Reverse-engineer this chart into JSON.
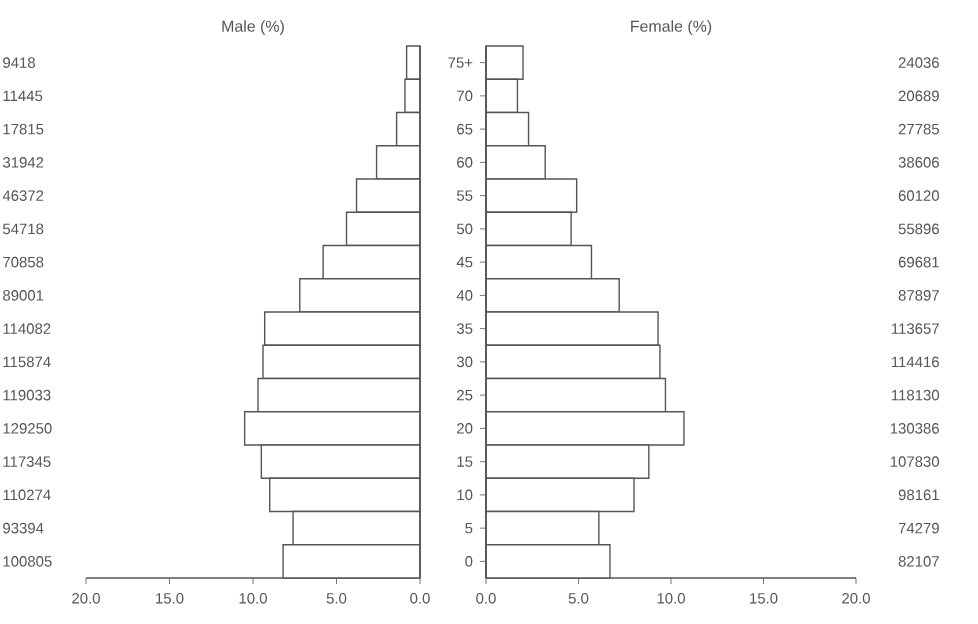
{
  "chart_data": [
    {
      "type": "bar",
      "orientation": "horizontal",
      "title": "Male (%)",
      "tick_labels": "x",
      "categories": [
        null,
        null,
        null,
        null,
        null,
        null,
        null,
        null,
        null,
        null,
        null,
        null,
        null,
        null,
        null,
        null
      ],
      "values": [
        0.8,
        0.9,
        1.4,
        2.6,
        3.8,
        4.4,
        5.8,
        7.2,
        9.3,
        9.4,
        9.7,
        10.5,
        9.5,
        9.0,
        7.6,
        8.2
      ],
      "annotations": [
        "9418",
        "11445",
        "17815",
        "31942",
        "46372",
        "54718",
        "70858",
        "89001",
        "114082",
        "115874",
        "119033",
        "129250",
        "117345",
        "110274",
        "93394",
        "100805"
      ],
      "color": "#ffffff",
      "xlim": [
        20,
        0
      ],
      "xticks": [
        {
          "value": 20,
          "label": "20.0"
        },
        {
          "value": 15,
          "label": "15.0"
        },
        {
          "value": 10,
          "label": "10.0"
        },
        {
          "value": 5,
          "label": "5.0"
        },
        {
          "value": 0,
          "label": "0.0"
        }
      ]
    },
    {
      "type": "bar",
      "orientation": "horizontal",
      "title": "Female (%)",
      "categories": [
        "75+",
        "70",
        "65",
        "60",
        "55",
        "50",
        "45",
        "40",
        "35",
        "30",
        "25",
        "20",
        "15",
        "10",
        "5",
        "0"
      ],
      "values": [
        2.0,
        1.7,
        2.3,
        3.2,
        4.9,
        4.6,
        5.7,
        7.2,
        9.3,
        9.4,
        9.7,
        10.7,
        8.8,
        8.0,
        6.1,
        6.7
      ],
      "annotations": [
        "24036",
        "20689",
        "27785",
        "38606",
        "60120",
        "55896",
        "69681",
        "87897",
        "113657",
        "114416",
        "118130",
        "130386",
        "107830",
        "98161",
        "74279",
        "82107"
      ],
      "color": "#ffffff",
      "xlim": [
        0,
        20
      ],
      "xticks": [
        {
          "value": 0,
          "label": "0.0"
        },
        {
          "value": 5,
          "label": "5.0"
        },
        {
          "value": 10,
          "label": "10.0"
        },
        {
          "value": 15,
          "label": "15.0"
        },
        {
          "value": 20,
          "label": "20.0"
        }
      ]
    }
  ]
}
